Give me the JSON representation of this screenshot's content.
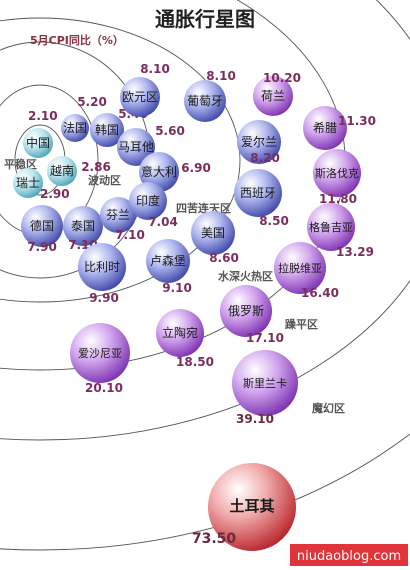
{
  "chart_data": {
    "type": "scatter",
    "title": "通胀行星图",
    "subtitle": "5月CPI同比（%）",
    "zones": [
      "平稳区",
      "波动区",
      "四苦连天区",
      "水深火热区",
      "躁平区",
      "魔幻区"
    ],
    "points": [
      {
        "name": "中国",
        "value": "2.10",
        "zone": "平稳区"
      },
      {
        "name": "瑞士",
        "value": "2.90",
        "zone": "平稳区"
      },
      {
        "name": "法国",
        "value": "5.20",
        "zone": "波动区"
      },
      {
        "name": "越南",
        "value": "2.86",
        "zone": "波动区"
      },
      {
        "name": "韩国",
        "value": "5.40",
        "zone": "波动区"
      },
      {
        "name": "欧元区",
        "value": "8.10",
        "zone": "四苦连天区"
      },
      {
        "name": "葡萄牙",
        "value": "8.10",
        "zone": "四苦连天区"
      },
      {
        "name": "马耳他",
        "value": "5.60",
        "zone": "四苦连天区"
      },
      {
        "name": "意大利",
        "value": "6.90",
        "zone": "四苦连天区"
      },
      {
        "name": "德国",
        "value": "7.90",
        "zone": "四苦连天区"
      },
      {
        "name": "泰国",
        "value": "7.10",
        "zone": "四苦连天区"
      },
      {
        "name": "芬兰",
        "value": "7.10",
        "zone": "四苦连天区"
      },
      {
        "name": "印度",
        "value": "7.04",
        "zone": "四苦连天区"
      },
      {
        "name": "爱尔兰",
        "value": "8.20",
        "zone": "四苦连天区"
      },
      {
        "name": "比利时",
        "value": "9.90",
        "zone": "水深火热区"
      },
      {
        "name": "卢森堡",
        "value": "9.10",
        "zone": "水深火热区"
      },
      {
        "name": "美国",
        "value": "8.60",
        "zone": "水深火热区"
      },
      {
        "name": "西班牙",
        "value": "8.50",
        "zone": "水深火热区"
      },
      {
        "name": "荷兰",
        "value": "10.20",
        "zone": "水深火热区"
      },
      {
        "name": "希腊",
        "value": "11.30",
        "zone": "水深火热区"
      },
      {
        "name": "斯洛伐克",
        "value": "11.80",
        "zone": "水深火热区"
      },
      {
        "name": "格鲁吉亚",
        "value": "13.29",
        "zone": "水深火热区"
      },
      {
        "name": "拉脱维亚",
        "value": "16.40",
        "zone": "躁平区"
      },
      {
        "name": "俄罗斯",
        "value": "17.10",
        "zone": "躁平区"
      },
      {
        "name": "立陶宛",
        "value": "18.50",
        "zone": "躁平区"
      },
      {
        "name": "爱沙尼亚",
        "value": "20.10",
        "zone": "躁平区"
      },
      {
        "name": "斯里兰卡",
        "value": "39.10",
        "zone": "魔幻区"
      },
      {
        "name": "土耳其",
        "value": "73.50",
        "zone": "魔幻区"
      }
    ]
  },
  "watermark": "niudaoblog.com",
  "colors": {
    "blue": "#5a66c8",
    "purple": "#9a4fc6",
    "teal": "#5ab7c8",
    "red": "#c8343a",
    "value_purple": "#7a2d5e",
    "value_dark": "#6a2a3a",
    "zone_label": "#555555"
  }
}
